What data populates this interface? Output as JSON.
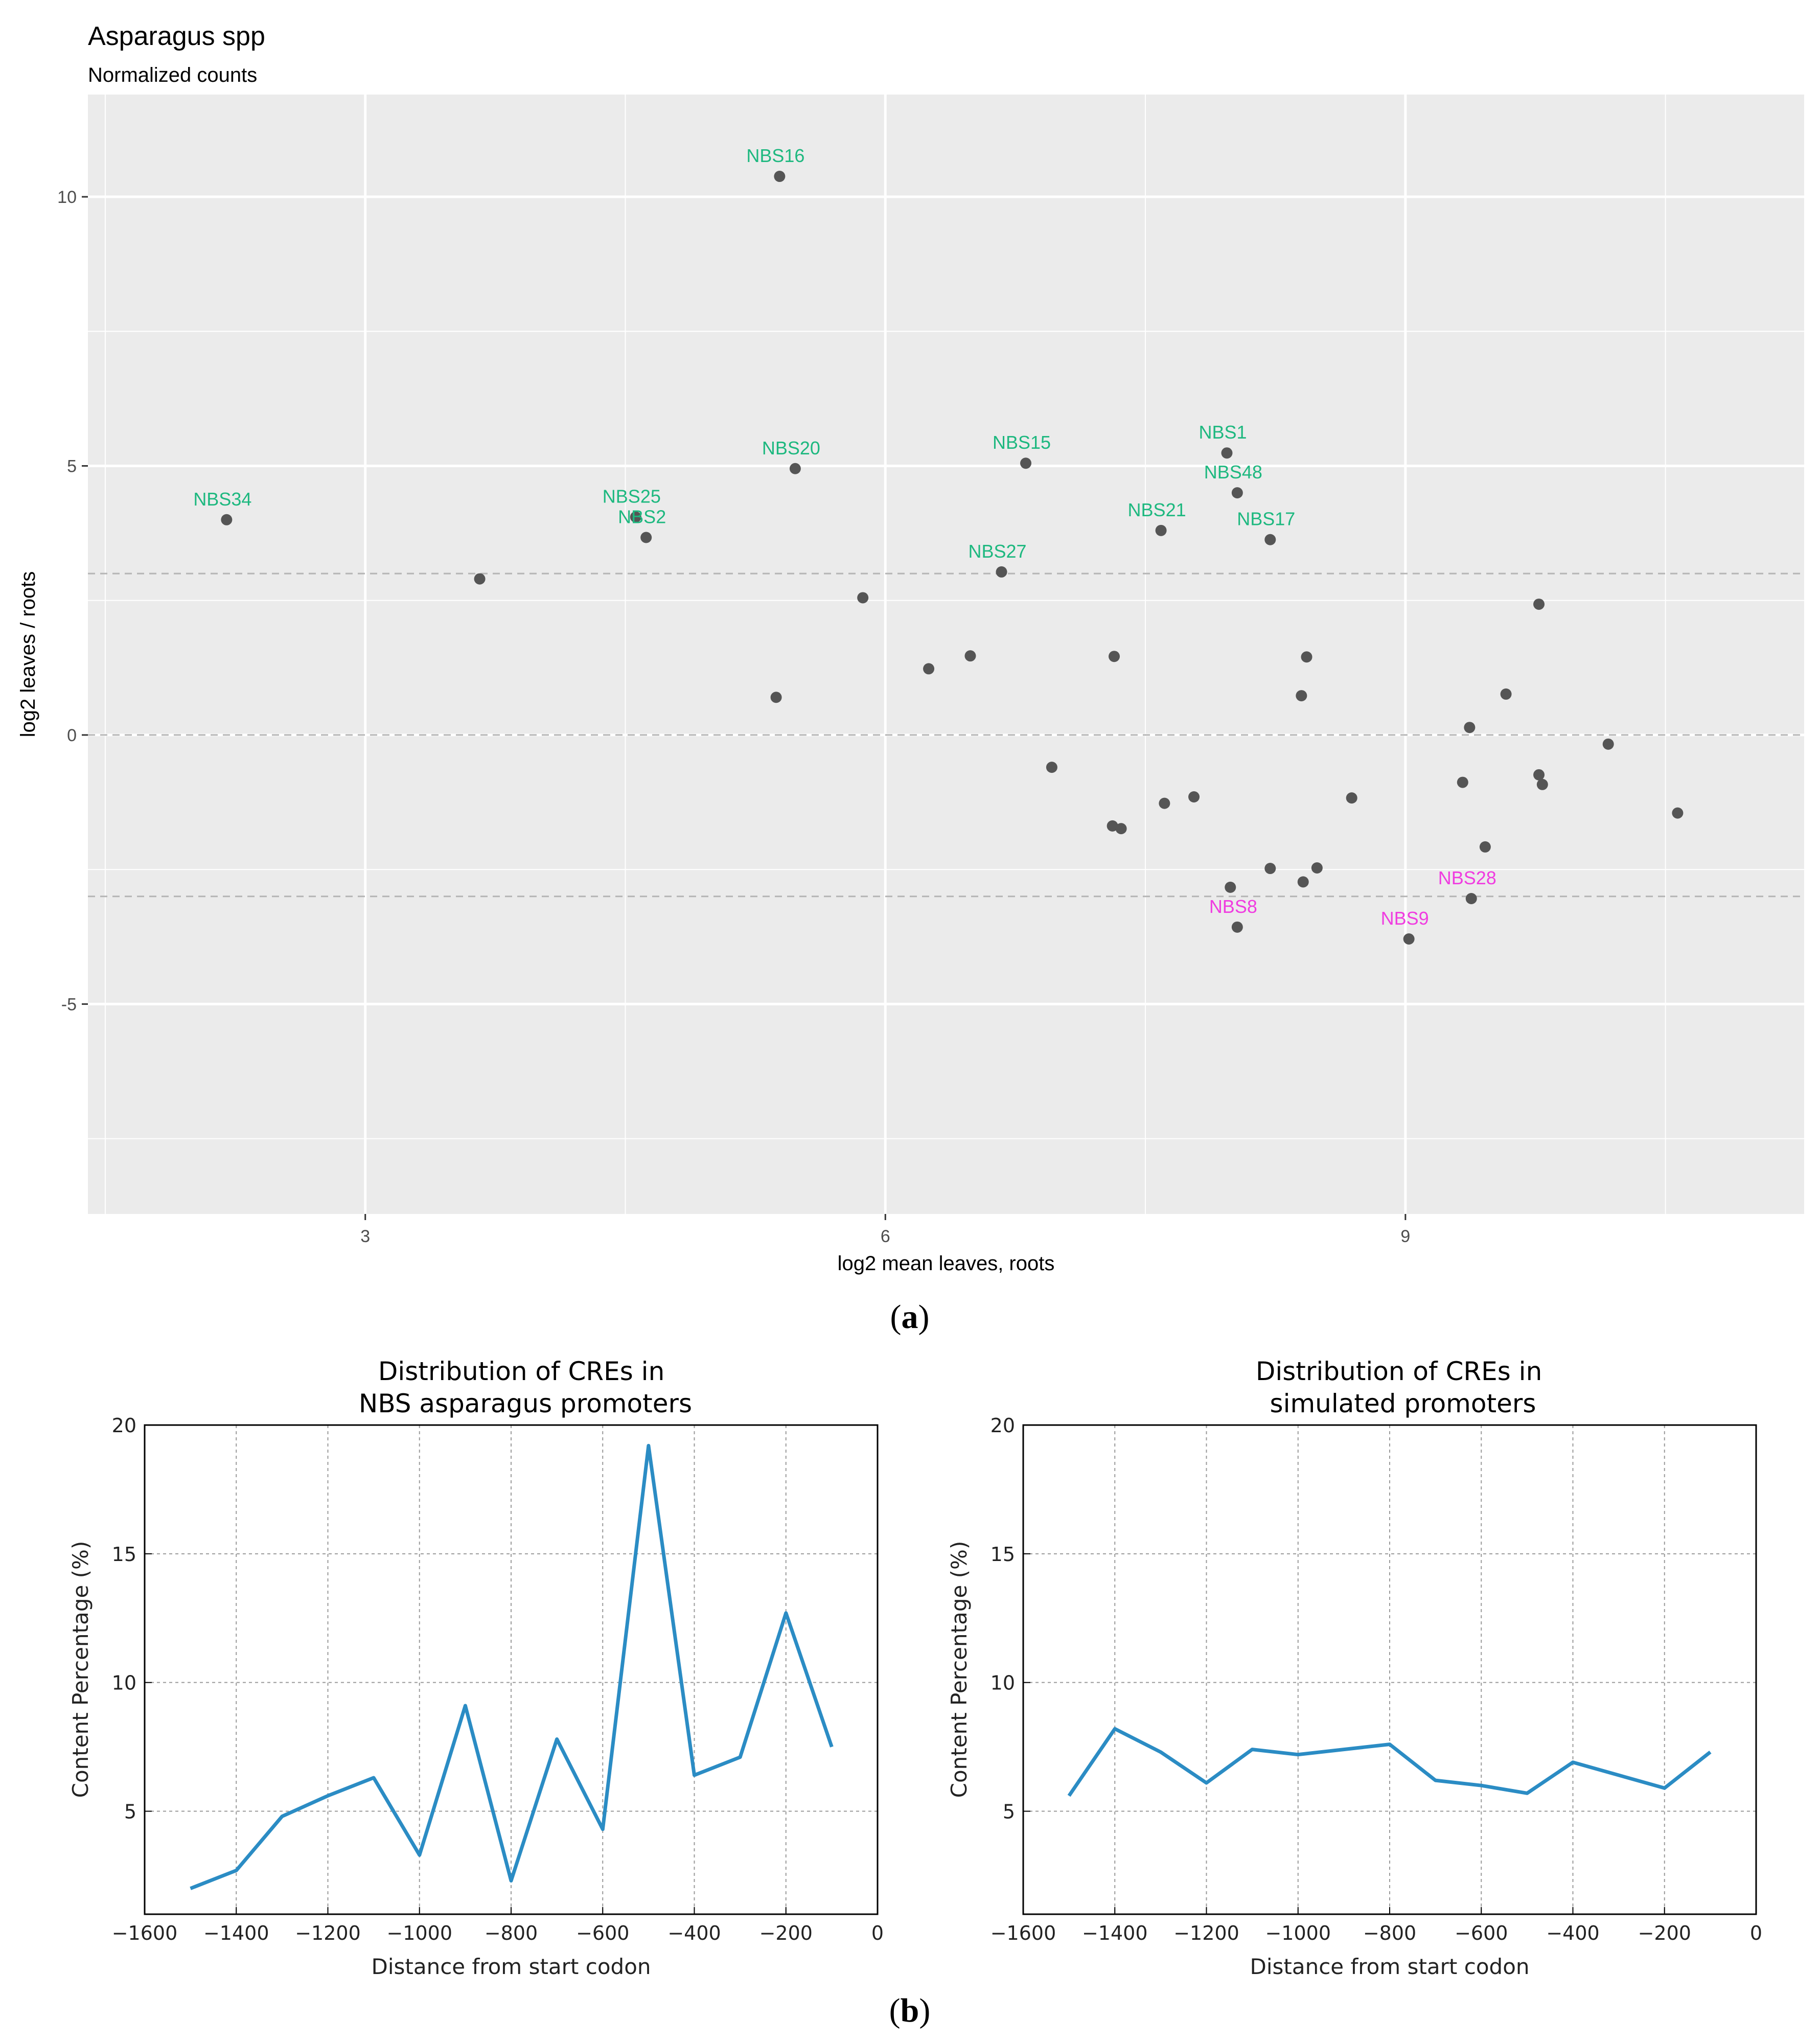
{
  "chart_data": [
    {
      "type": "scatter",
      "panel_label": "(a)",
      "panel_letter": "a",
      "title": "Asparagus spp",
      "subtitle": "Normalized counts",
      "xlabel": "log2 mean leaves, roots",
      "ylabel": "log2 leaves / roots",
      "xlim": [
        1.4,
        11.3
      ],
      "ylim": [
        -8.9,
        11.9
      ],
      "xticks": [
        {
          "value": 3,
          "label": "3"
        },
        {
          "value": 6,
          "label": "6"
        },
        {
          "value": 9,
          "label": "9"
        }
      ],
      "yticks": [
        {
          "value": -5,
          "label": "-5"
        },
        {
          "value": 0,
          "label": "0"
        },
        {
          "value": 5,
          "label": "5"
        },
        {
          "value": 10,
          "label": "10"
        }
      ],
      "xminor": [
        1.5,
        4.5,
        7.5,
        10.5
      ],
      "yminor": [
        -7.5,
        -2.5,
        2.5,
        7.5
      ],
      "hlines": [
        3,
        0,
        -3
      ],
      "colors": {
        "up": "#1db87f",
        "down": "#f03ce0",
        "point": "#555555",
        "panel": "#ebebeb"
      },
      "points": [
        {
          "x": 2.2,
          "y": 4.0,
          "label": "NBS34",
          "group": "up"
        },
        {
          "x": 4.56,
          "y": 4.05,
          "label": "NBS25",
          "group": "up"
        },
        {
          "x": 4.62,
          "y": 3.67,
          "label": "NBS2",
          "group": "up"
        },
        {
          "x": 5.39,
          "y": 10.38,
          "label": "NBS16",
          "group": "up"
        },
        {
          "x": 5.48,
          "y": 4.95,
          "label": "NBS20",
          "group": "up"
        },
        {
          "x": 6.81,
          "y": 5.05,
          "label": "NBS15",
          "group": "up"
        },
        {
          "x": 6.67,
          "y": 3.03,
          "label": "NBS27",
          "group": "up"
        },
        {
          "x": 7.59,
          "y": 3.8,
          "label": "NBS21",
          "group": "up"
        },
        {
          "x": 7.97,
          "y": 5.24,
          "label": "NBS1",
          "group": "up"
        },
        {
          "x": 8.03,
          "y": 4.5,
          "label": "NBS48",
          "group": "up"
        },
        {
          "x": 8.22,
          "y": 3.63,
          "label": "NBS17",
          "group": "up"
        },
        {
          "x": 8.03,
          "y": -3.57,
          "label": "NBS8",
          "group": "down"
        },
        {
          "x": 9.02,
          "y": -3.79,
          "label": "NBS9",
          "group": "down"
        },
        {
          "x": 9.38,
          "y": -3.04,
          "label": "NBS28",
          "group": "down"
        },
        {
          "x": 3.66,
          "y": 2.9,
          "label": "",
          "group": "none"
        },
        {
          "x": 5.87,
          "y": 2.55,
          "label": "",
          "group": "none"
        },
        {
          "x": 5.37,
          "y": 0.7,
          "label": "",
          "group": "none"
        },
        {
          "x": 6.25,
          "y": 1.23,
          "label": "",
          "group": "none"
        },
        {
          "x": 6.49,
          "y": 1.47,
          "label": "",
          "group": "none"
        },
        {
          "x": 6.96,
          "y": -0.6,
          "label": "",
          "group": "none"
        },
        {
          "x": 7.32,
          "y": 1.46,
          "label": "",
          "group": "none"
        },
        {
          "x": 7.31,
          "y": -1.69,
          "label": "",
          "group": "none"
        },
        {
          "x": 7.36,
          "y": -1.74,
          "label": "",
          "group": "none"
        },
        {
          "x": 7.61,
          "y": -1.27,
          "label": "",
          "group": "none"
        },
        {
          "x": 7.78,
          "y": -1.15,
          "label": "",
          "group": "none"
        },
        {
          "x": 7.99,
          "y": -2.83,
          "label": "",
          "group": "none"
        },
        {
          "x": 8.22,
          "y": -2.48,
          "label": "",
          "group": "none"
        },
        {
          "x": 8.4,
          "y": 0.73,
          "label": "",
          "group": "none"
        },
        {
          "x": 8.43,
          "y": 1.45,
          "label": "",
          "group": "none"
        },
        {
          "x": 8.41,
          "y": -2.73,
          "label": "",
          "group": "none"
        },
        {
          "x": 8.49,
          "y": -2.47,
          "label": "",
          "group": "none"
        },
        {
          "x": 8.69,
          "y": -1.17,
          "label": "",
          "group": "none"
        },
        {
          "x": 9.33,
          "y": -0.88,
          "label": "",
          "group": "none"
        },
        {
          "x": 9.37,
          "y": 0.14,
          "label": "",
          "group": "none"
        },
        {
          "x": 9.46,
          "y": -2.08,
          "label": "",
          "group": "none"
        },
        {
          "x": 9.58,
          "y": 0.76,
          "label": "",
          "group": "none"
        },
        {
          "x": 9.77,
          "y": 2.43,
          "label": "",
          "group": "none"
        },
        {
          "x": 9.77,
          "y": -0.74,
          "label": "",
          "group": "none"
        },
        {
          "x": 9.79,
          "y": -0.92,
          "label": "",
          "group": "none"
        },
        {
          "x": 10.17,
          "y": -0.17,
          "label": "",
          "group": "none"
        },
        {
          "x": 10.57,
          "y": -1.45,
          "label": "",
          "group": "none"
        }
      ]
    },
    {
      "type": "line",
      "title": "Distribution of CREs in\nNBS asparagus promoters",
      "xlabel": "Distance from start codon",
      "ylabel": "Content Percentage (%)",
      "xlim": [
        -1600,
        0
      ],
      "ylim": [
        1,
        20
      ],
      "xticks": [
        -1600,
        -1400,
        -1200,
        -1000,
        -800,
        -600,
        -400,
        -200,
        0
      ],
      "xtick_labels": [
        "−1600",
        "−1400",
        "−1200",
        "−1000",
        "−800",
        "−600",
        "−400",
        "−200",
        "0"
      ],
      "yticks": [
        5,
        10,
        15,
        20
      ],
      "ytick_labels": [
        "5",
        "10",
        "15",
        "20"
      ],
      "grid": true,
      "color": "#2b8cc4",
      "x": [
        -1500,
        -1400,
        -1300,
        -1200,
        -1100,
        -1000,
        -900,
        -800,
        -700,
        -600,
        -500,
        -400,
        -300,
        -200,
        -100
      ],
      "y": [
        2.0,
        2.7,
        4.8,
        5.6,
        6.3,
        3.3,
        9.1,
        2.3,
        7.8,
        4.3,
        19.2,
        6.4,
        7.1,
        12.7,
        7.5
      ]
    },
    {
      "type": "line",
      "panel_label": "(b)",
      "panel_letter": "b",
      "title": "Distribution of CREs in\nsimulated promoters",
      "xlabel": "Distance from start codon",
      "ylabel": "Content Percentage (%)",
      "xlim": [
        -1600,
        0
      ],
      "ylim": [
        1,
        20
      ],
      "xticks": [
        -1600,
        -1400,
        -1200,
        -1000,
        -800,
        -600,
        -400,
        -200,
        0
      ],
      "xtick_labels": [
        "−1600",
        "−1400",
        "−1200",
        "−1000",
        "−800",
        "−600",
        "−400",
        "−200",
        "0"
      ],
      "yticks": [
        5,
        10,
        15,
        20
      ],
      "ytick_labels": [
        "5",
        "10",
        "15",
        "20"
      ],
      "grid": true,
      "color": "#2b8cc4",
      "x": [
        -1500,
        -1400,
        -1300,
        -1200,
        -1100,
        -1000,
        -900,
        -800,
        -700,
        -600,
        -500,
        -400,
        -300,
        -200,
        -100
      ],
      "y": [
        5.6,
        8.2,
        7.3,
        6.1,
        7.4,
        7.2,
        7.4,
        7.6,
        6.2,
        6.0,
        5.7,
        6.9,
        6.4,
        5.9,
        7.3
      ]
    }
  ]
}
